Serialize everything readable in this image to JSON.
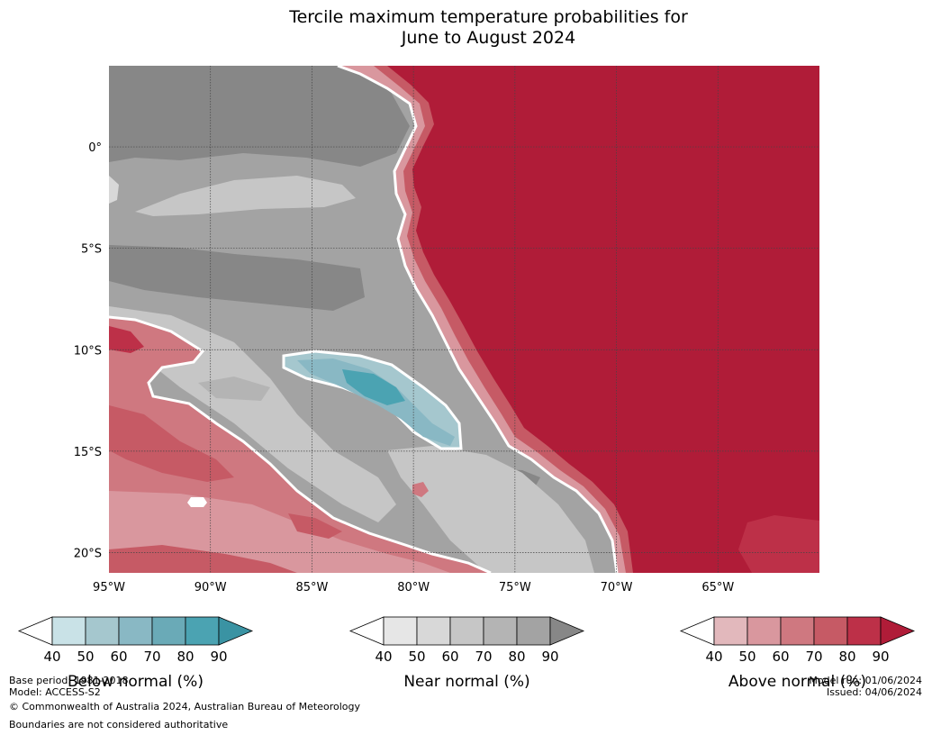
{
  "title": {
    "line1": "Tercile maximum temperature probabilities for",
    "line2": "June to August 2024"
  },
  "map": {
    "lon_range": [
      -95,
      -60
    ],
    "lat_range": [
      -21,
      4
    ],
    "lon_ticks": [
      {
        "value": -95,
        "label": "95°W"
      },
      {
        "value": -90,
        "label": "90°W"
      },
      {
        "value": -85,
        "label": "85°W"
      },
      {
        "value": -80,
        "label": "80°W"
      },
      {
        "value": -75,
        "label": "75°W"
      },
      {
        "value": -70,
        "label": "70°W"
      },
      {
        "value": -65,
        "label": "65°W"
      }
    ],
    "lat_ticks": [
      {
        "value": 0,
        "label": "0°"
      },
      {
        "value": -5,
        "label": "5°S"
      },
      {
        "value": -10,
        "label": "10°S"
      },
      {
        "value": -15,
        "label": "15°S"
      },
      {
        "value": -20,
        "label": "20°S"
      }
    ],
    "gridlines": true
  },
  "legends": [
    {
      "name": "Below normal (%)",
      "ticks": [
        "40",
        "50",
        "60",
        "70",
        "80",
        "90"
      ],
      "colors": [
        "#c9e2e7",
        "#a5c7ce",
        "#89b8c4",
        "#6aaab7",
        "#4ba3b2",
        "#3a93a3"
      ]
    },
    {
      "name": "Near normal (%)",
      "ticks": [
        "40",
        "50",
        "60",
        "70",
        "80",
        "90"
      ],
      "colors": [
        "#e6e6e6",
        "#d8d8d8",
        "#c6c6c6",
        "#b4b4b4",
        "#a3a3a3",
        "#878787"
      ]
    },
    {
      "name": "Above normal (%)",
      "ticks": [
        "40",
        "50",
        "60",
        "70",
        "80",
        "90"
      ],
      "colors": [
        "#e2b8bc",
        "#d9979e",
        "#cf7880",
        "#c65a65",
        "#bd3048",
        "#b01c38"
      ]
    }
  ],
  "footer": {
    "base_period": "Base period: 1981-2018",
    "model": "Model: ACCESS-S2",
    "copyright": "© Commonwealth of Australia 2024, Australian Bureau of Meteorology",
    "boundaries": "Boundaries are not considered authoritative",
    "model_run": "Model run: 01/06/2024",
    "issued": "Issued: 04/06/2024"
  }
}
